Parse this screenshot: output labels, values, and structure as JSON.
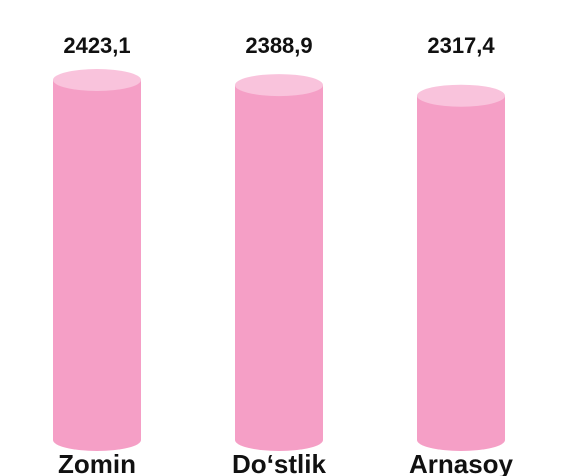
{
  "chart_data": {
    "type": "bar",
    "categories": [
      "Zomin",
      "Do‘stlik",
      "Arnasoy"
    ],
    "values": [
      2423.1,
      2388.9,
      2317.4
    ],
    "value_labels": [
      "2423,1",
      "2388,9",
      "2317,4"
    ],
    "color": "#f59fc6",
    "top_color": "#f9c3dc"
  }
}
